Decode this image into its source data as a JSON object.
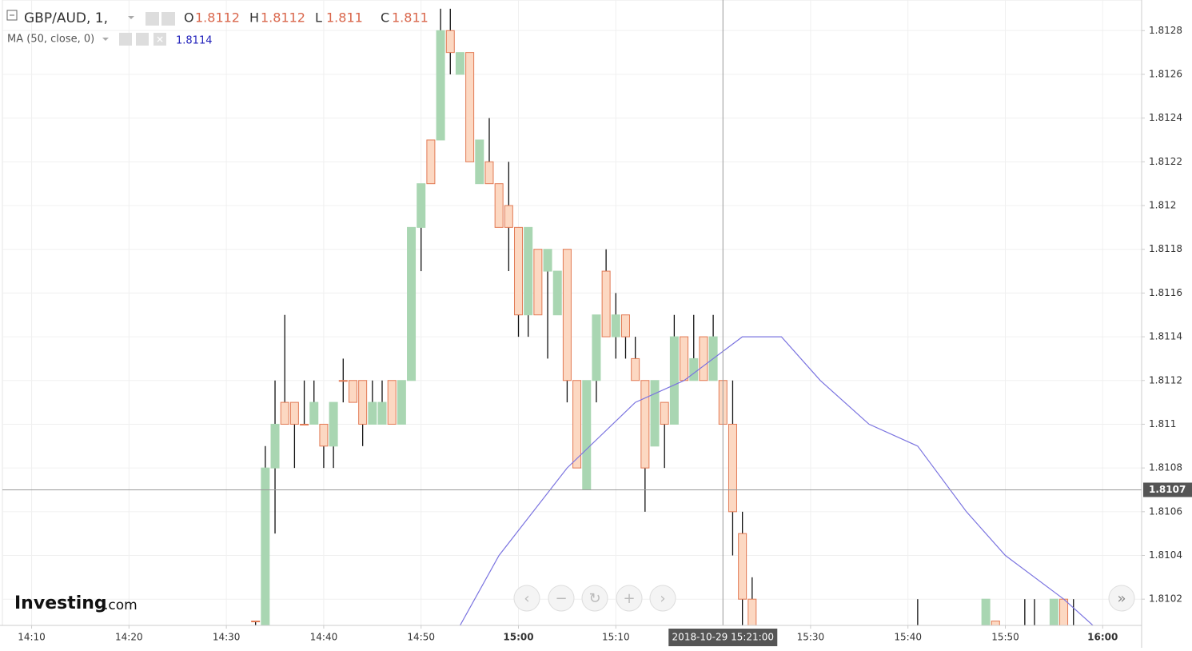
{
  "chart_data": {
    "type": "candlestick",
    "symbol": "GBP/AUD, 1,",
    "ohlc_header": [
      {
        "label": "O",
        "value": 1.8112
      },
      {
        "label": "H",
        "value": 1.8112
      },
      {
        "label": "L",
        "value": 1.811
      },
      {
        "label": "C",
        "value": 1.811
      }
    ],
    "indicator": {
      "name": "MA (50, close, 0)",
      "value": 1.8114,
      "color": "#7b74e0",
      "x": [
        "14:53",
        "14:58",
        "15:05",
        "15:12",
        "15:17",
        "15:23",
        "15:27",
        "15:31",
        "15:36",
        "15:41",
        "15:46",
        "15:50",
        "15:56",
        "16:01"
      ],
      "values": [
        1.81,
        1.8104,
        1.8108,
        1.8111,
        1.8112,
        1.8114,
        1.8114,
        1.8112,
        1.811,
        1.8109,
        1.8106,
        1.8104,
        1.8102,
        1.81
      ]
    },
    "up_color": "#a9d6b2",
    "down_color": "#fcd8c2",
    "down_border": "#e27a54",
    "x": [
      "14:33",
      "14:34",
      "14:35",
      "14:36",
      "14:37",
      "14:38",
      "14:39",
      "14:40",
      "14:41",
      "14:42",
      "14:43",
      "14:44",
      "14:45",
      "14:46",
      "14:47",
      "14:48",
      "14:49",
      "14:50",
      "14:51",
      "14:52",
      "14:53",
      "14:54",
      "14:55",
      "14:56",
      "14:57",
      "14:58",
      "14:59",
      "15:00",
      "15:01",
      "15:02",
      "15:03",
      "15:04",
      "15:05",
      "15:06",
      "15:07",
      "15:08",
      "15:09",
      "15:10",
      "15:11",
      "15:12",
      "15:13",
      "15:14",
      "15:15",
      "15:16",
      "15:17",
      "15:18",
      "15:19",
      "15:20",
      "15:21",
      "15:22",
      "15:23",
      "15:24",
      "15:41",
      "15:48",
      "15:49",
      "15:52",
      "15:53",
      "15:55",
      "15:56",
      "15:57"
    ],
    "open": [
      1.8101,
      1.81,
      1.8108,
      1.8111,
      1.8111,
      1.811,
      1.811,
      1.811,
      1.8109,
      1.8112,
      1.8112,
      1.8112,
      1.811,
      1.811,
      1.8112,
      1.811,
      1.8112,
      1.8119,
      1.8123,
      1.8123,
      1.8128,
      1.8126,
      1.8127,
      1.8121,
      1.8122,
      1.8121,
      1.812,
      1.8119,
      1.8115,
      1.8118,
      1.8117,
      1.8115,
      1.8118,
      1.8112,
      1.8107,
      1.8112,
      1.8117,
      1.8114,
      1.8115,
      1.8113,
      1.8112,
      1.8109,
      1.8111,
      1.811,
      1.8114,
      1.8112,
      1.8114,
      1.8112,
      1.8112,
      1.811,
      1.8105,
      1.8102,
      1.81,
      1.81,
      1.8101,
      1.81,
      1.81,
      1.81,
      1.8102,
      1.81
    ],
    "high": [
      1.8101,
      1.8109,
      1.8112,
      1.8115,
      1.8111,
      1.8112,
      1.8112,
      1.811,
      1.8111,
      1.8113,
      1.8112,
      1.8112,
      1.8112,
      1.8112,
      1.8112,
      1.8112,
      1.8119,
      1.8121,
      1.8123,
      1.8129,
      1.8129,
      1.8127,
      1.8127,
      1.8123,
      1.8124,
      1.8121,
      1.8122,
      1.8119,
      1.8119,
      1.8118,
      1.8118,
      1.8117,
      1.8118,
      1.8112,
      1.8112,
      1.8115,
      1.8118,
      1.8116,
      1.8115,
      1.8114,
      1.8112,
      1.8112,
      1.8111,
      1.8115,
      1.8114,
      1.8115,
      1.8114,
      1.8115,
      1.8112,
      1.8112,
      1.8106,
      1.8103,
      1.8102,
      1.8102,
      1.8101,
      1.8102,
      1.8102,
      1.8102,
      1.8102,
      1.8102
    ],
    "low": [
      1.81,
      1.81,
      1.8105,
      1.811,
      1.8108,
      1.811,
      1.811,
      1.8108,
      1.8108,
      1.8111,
      1.8111,
      1.8109,
      1.811,
      1.811,
      1.811,
      1.811,
      1.8112,
      1.8117,
      1.8121,
      1.8123,
      1.8126,
      1.8126,
      1.8122,
      1.8121,
      1.8121,
      1.8119,
      1.8117,
      1.8114,
      1.8114,
      1.8115,
      1.8113,
      1.8115,
      1.8111,
      1.8108,
      1.8107,
      1.8111,
      1.8114,
      1.8113,
      1.8113,
      1.8112,
      1.8106,
      1.8109,
      1.8108,
      1.811,
      1.8112,
      1.8112,
      1.8112,
      1.8112,
      1.811,
      1.8104,
      1.81,
      1.81,
      1.81,
      1.81,
      1.81,
      1.81,
      1.81,
      1.81,
      1.81,
      1.81
    ],
    "close": [
      1.8101,
      1.8108,
      1.811,
      1.811,
      1.811,
      1.811,
      1.8111,
      1.8109,
      1.8111,
      1.8112,
      1.8111,
      1.811,
      1.8111,
      1.8111,
      1.811,
      1.8112,
      1.8119,
      1.8121,
      1.8121,
      1.8128,
      1.8127,
      1.8127,
      1.8122,
      1.8123,
      1.8121,
      1.8119,
      1.8119,
      1.8115,
      1.8119,
      1.8115,
      1.8118,
      1.8117,
      1.8112,
      1.8108,
      1.8112,
      1.8115,
      1.8114,
      1.8115,
      1.8114,
      1.8112,
      1.8108,
      1.8112,
      1.811,
      1.8114,
      1.8112,
      1.8113,
      1.8112,
      1.8114,
      1.811,
      1.8106,
      1.8102,
      1.81,
      1.81,
      1.8102,
      1.81,
      1.81,
      1.81,
      1.8102,
      1.81,
      1.81
    ],
    "xlim": [
      "14:07",
      "16:04"
    ],
    "xticks": [
      "14:10",
      "14:20",
      "14:30",
      "14:40",
      "14:50",
      "15:00",
      "15:10",
      "15:30",
      "15:40",
      "15:50",
      "16:00"
    ],
    "ylim": [
      1.81008,
      1.81294
    ],
    "yticks": [
      1.8102,
      1.8104,
      1.8106,
      1.8108,
      1.811,
      1.8112,
      1.8114,
      1.8116,
      1.8118,
      1.812,
      1.8122,
      1.8124,
      1.8126,
      1.8128
    ],
    "grid": true,
    "crosshair": {
      "price": 1.8107,
      "time": "2018-10-29 15:21:00"
    },
    "logo": {
      "brand": "Investing",
      "suffix": ".com"
    }
  }
}
